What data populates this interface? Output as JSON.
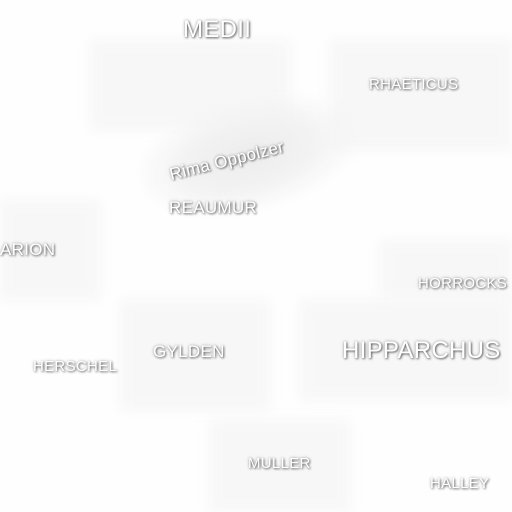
{
  "map": {
    "background_color": "#fefefe",
    "label_color": "#ffffff",
    "labels": {
      "medii": "MEDII",
      "rhaeticus": "RHAETICUS",
      "rima_oppolzer": "Rima Oppolzer",
      "reaumur": "REAUMUR",
      "arion": "ARION",
      "horrocks": "HORROCKS",
      "gylden": "GYLDEN",
      "herschel": "HERSCHEL",
      "hipparchus": "HIPPARCHUS",
      "muller": "MULLER",
      "halley": "HALLEY"
    }
  }
}
